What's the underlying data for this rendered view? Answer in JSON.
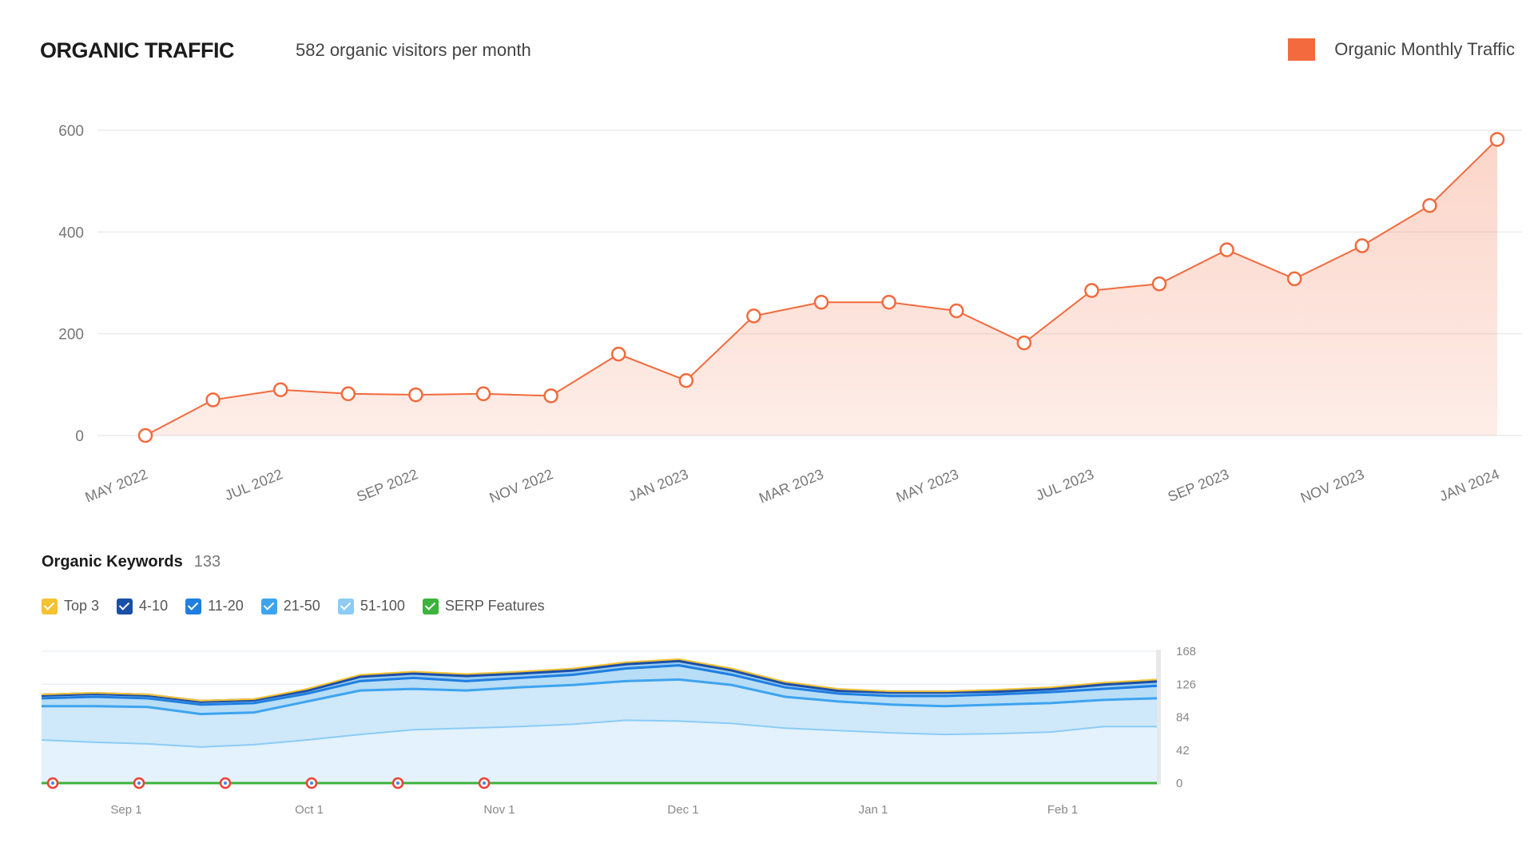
{
  "header": {
    "title": "ORGANIC TRAFFIC",
    "subtitle": "582 organic visitors per month",
    "legend_label": "Organic Monthly Traffic",
    "legend_color": "#f26a3d"
  },
  "keywords": {
    "title": "Organic Keywords",
    "count": "133",
    "legend": [
      {
        "label": "Top 3",
        "color": "#f5c232"
      },
      {
        "label": "4-10",
        "color": "#1a4fa8"
      },
      {
        "label": "11-20",
        "color": "#1f7fe0"
      },
      {
        "label": "21-50",
        "color": "#3ea4ef"
      },
      {
        "label": "51-100",
        "color": "#8cccf6"
      },
      {
        "label": "SERP Features",
        "color": "#3cb33c"
      }
    ]
  },
  "chart_data": [
    {
      "type": "area",
      "title": "ORGANIC TRAFFIC",
      "series": [
        {
          "name": "Organic Monthly Traffic",
          "color": "#f26a3d",
          "values": [
            0,
            70,
            90,
            82,
            80,
            82,
            78,
            160,
            108,
            235,
            262,
            262,
            245,
            182,
            285,
            298,
            365,
            308,
            373,
            452,
            582
          ]
        }
      ],
      "x": [
        "2022-05",
        "2022-06",
        "2022-07",
        "2022-08",
        "2022-09",
        "2022-10",
        "2022-11",
        "2022-12",
        "2023-01",
        "2023-02",
        "2023-03",
        "2023-04",
        "2023-05",
        "2023-06",
        "2023-07",
        "2023-08",
        "2023-09",
        "2023-10",
        "2023-11",
        "2023-12",
        "2024-01"
      ],
      "tick_labels": [
        "MAY 2022",
        "JUL 2022",
        "SEP 2022",
        "NOV 2022",
        "JAN 2023",
        "MAR 2023",
        "MAY 2023",
        "JUL 2023",
        "SEP 2023",
        "NOV 2023",
        "JAN 2024"
      ],
      "y_ticks": [
        "600",
        "400",
        "200",
        "0"
      ],
      "ylim": [
        0,
        600
      ],
      "grid": true,
      "legend": "top-right"
    },
    {
      "type": "area",
      "title": "Organic Keywords",
      "x_ticks": [
        "Sep 1",
        "Oct 1",
        "Nov 1",
        "Dec 1",
        "Jan 1",
        "Feb 1"
      ],
      "y_ticks": [
        "168",
        "126",
        "84",
        "42",
        "0"
      ],
      "ylim": [
        0,
        168
      ],
      "stacked": true,
      "series": [
        {
          "name": "51-100",
          "color": "#8cccf6",
          "values": [
            55,
            52,
            50,
            46,
            49,
            55,
            62,
            68,
            70,
            72,
            75,
            80,
            79,
            76,
            70,
            67,
            64,
            62,
            63,
            65,
            72,
            72
          ]
        },
        {
          "name": "21-50",
          "color": "#3ea4ef",
          "values": [
            98,
            98,
            97,
            88,
            90,
            104,
            118,
            120,
            118,
            122,
            125,
            130,
            132,
            125,
            110,
            104,
            100,
            98,
            100,
            102,
            106,
            108
          ]
        },
        {
          "name": "11-20",
          "color": "#1f7fe0",
          "values": [
            108,
            110,
            108,
            100,
            102,
            114,
            130,
            134,
            130,
            134,
            138,
            146,
            150,
            138,
            122,
            114,
            111,
            111,
            113,
            116,
            120,
            124
          ]
        },
        {
          "name": "4-10",
          "color": "#1a4fa8",
          "values": [
            112,
            114,
            112,
            104,
            106,
            118,
            136,
            140,
            137,
            140,
            144,
            152,
            156,
            144,
            127,
            118,
            116,
            116,
            117,
            120,
            126,
            130
          ]
        },
        {
          "name": "Top 3",
          "color": "#f5c232",
          "values": [
            113,
            115,
            113,
            105,
            107,
            120,
            138,
            142,
            139,
            142,
            146,
            154,
            158,
            146,
            129,
            120,
            117,
            117,
            119,
            122,
            128,
            132
          ]
        }
      ],
      "serp_markers": 6,
      "grid": true
    }
  ]
}
